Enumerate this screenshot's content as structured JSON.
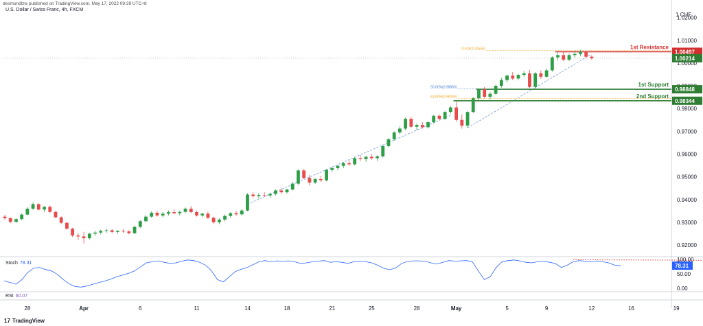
{
  "header": {
    "publisher_line": "desmondlzw published on TradingView.com, May 17, 2022 09:29 UTC+8",
    "symbol": "U.S. Dollar / Swiss Franc, 4h, FXCM"
  },
  "brand": {
    "logo": "17",
    "name": "TradingView"
  },
  "chart_data": {
    "type": "candlestick",
    "currency": "CHF",
    "y_ticks": [
      "1.02000",
      "1.01000",
      "1.00000",
      "0.99000",
      "0.98000",
      "0.97000",
      "0.96000",
      "0.95000",
      "0.94000",
      "0.93000",
      "0.92000"
    ],
    "ylim": [
      0.9155,
      1.0235
    ],
    "x_ticks": [
      {
        "label": "28",
        "bar": 4,
        "bold": false
      },
      {
        "label": "Apr",
        "bar": 14,
        "bold": true
      },
      {
        "label": "6",
        "bar": 24,
        "bold": false
      },
      {
        "label": "11",
        "bar": 34,
        "bold": false
      },
      {
        "label": "14",
        "bar": 43,
        "bold": false
      },
      {
        "label": "18",
        "bar": 50,
        "bold": false
      },
      {
        "label": "21",
        "bar": 58,
        "bold": false
      },
      {
        "label": "25",
        "bar": 65,
        "bold": false
      },
      {
        "label": "28",
        "bar": 73,
        "bold": false
      },
      {
        "label": "May",
        "bar": 80,
        "bold": true
      },
      {
        "label": "5",
        "bar": 89,
        "bold": false
      },
      {
        "label": "9",
        "bar": 96,
        "bold": false
      },
      {
        "label": "12",
        "bar": 104,
        "bold": false
      },
      {
        "label": "16",
        "bar": 111,
        "bold": false
      },
      {
        "label": "19",
        "bar": 119,
        "bold": false
      }
    ],
    "candles": [
      [
        0.9325,
        0.9333,
        0.9312,
        0.9318
      ],
      [
        0.9318,
        0.9322,
        0.9296,
        0.9302
      ],
      [
        0.9302,
        0.9318,
        0.9298,
        0.9314
      ],
      [
        0.9314,
        0.9339,
        0.931,
        0.9334
      ],
      [
        0.9334,
        0.9366,
        0.933,
        0.936
      ],
      [
        0.936,
        0.9388,
        0.9355,
        0.938
      ],
      [
        0.938,
        0.9384,
        0.9352,
        0.9356
      ],
      [
        0.9356,
        0.9372,
        0.9345,
        0.9368
      ],
      [
        0.9368,
        0.9374,
        0.934,
        0.9346
      ],
      [
        0.9346,
        0.935,
        0.9318,
        0.9322
      ],
      [
        0.9322,
        0.9326,
        0.9292,
        0.9298
      ],
      [
        0.9298,
        0.9302,
        0.9268,
        0.9272
      ],
      [
        0.9272,
        0.9276,
        0.9236,
        0.9242
      ],
      [
        0.9242,
        0.9252,
        0.9222,
        0.9238
      ],
      [
        0.9238,
        0.9258,
        0.9208,
        0.923
      ],
      [
        0.923,
        0.9254,
        0.9224,
        0.925
      ],
      [
        0.925,
        0.9262,
        0.924,
        0.9255
      ],
      [
        0.9255,
        0.9268,
        0.9247,
        0.9262
      ],
      [
        0.9262,
        0.9272,
        0.9253,
        0.9265
      ],
      [
        0.9265,
        0.927,
        0.9252,
        0.9258
      ],
      [
        0.9258,
        0.9266,
        0.925,
        0.9262
      ],
      [
        0.9262,
        0.927,
        0.9254,
        0.926
      ],
      [
        0.926,
        0.9265,
        0.9247,
        0.9252
      ],
      [
        0.9252,
        0.9285,
        0.9248,
        0.928
      ],
      [
        0.928,
        0.931,
        0.9275,
        0.9305
      ],
      [
        0.9305,
        0.9332,
        0.93,
        0.9325
      ],
      [
        0.9325,
        0.9348,
        0.932,
        0.9342
      ],
      [
        0.9342,
        0.935,
        0.9325,
        0.933
      ],
      [
        0.933,
        0.9345,
        0.9322,
        0.9338
      ],
      [
        0.9338,
        0.9352,
        0.933,
        0.9345
      ],
      [
        0.9345,
        0.9358,
        0.9335,
        0.934
      ],
      [
        0.934,
        0.935,
        0.933,
        0.9346
      ],
      [
        0.9346,
        0.9365,
        0.934,
        0.936
      ],
      [
        0.936,
        0.9372,
        0.934,
        0.9345
      ],
      [
        0.9345,
        0.9352,
        0.9325,
        0.933
      ],
      [
        0.933,
        0.9342,
        0.9322,
        0.9338
      ],
      [
        0.9338,
        0.9346,
        0.9315,
        0.932
      ],
      [
        0.932,
        0.9325,
        0.9292,
        0.93
      ],
      [
        0.93,
        0.9318,
        0.9292,
        0.9312
      ],
      [
        0.9312,
        0.9335,
        0.9305,
        0.9328
      ],
      [
        0.9328,
        0.9345,
        0.932,
        0.934
      ],
      [
        0.934,
        0.935,
        0.9328,
        0.9335
      ],
      [
        0.9335,
        0.9358,
        0.933,
        0.9352
      ],
      [
        0.9352,
        0.9428,
        0.9348,
        0.9422
      ],
      [
        0.9422,
        0.9432,
        0.9408,
        0.9415
      ],
      [
        0.9415,
        0.9428,
        0.9405,
        0.942
      ],
      [
        0.942,
        0.9432,
        0.9412,
        0.9418
      ],
      [
        0.9418,
        0.943,
        0.9408,
        0.9425
      ],
      [
        0.9425,
        0.9445,
        0.9418,
        0.944
      ],
      [
        0.944,
        0.945,
        0.9425,
        0.9432
      ],
      [
        0.9432,
        0.9448,
        0.9426,
        0.9444
      ],
      [
        0.9444,
        0.9478,
        0.944,
        0.947
      ],
      [
        0.947,
        0.9532,
        0.9465,
        0.9528
      ],
      [
        0.9528,
        0.9535,
        0.949,
        0.9495
      ],
      [
        0.9495,
        0.9508,
        0.9462,
        0.9475
      ],
      [
        0.9475,
        0.9495,
        0.9468,
        0.949
      ],
      [
        0.949,
        0.9505,
        0.9478,
        0.9485
      ],
      [
        0.9485,
        0.9535,
        0.948,
        0.953
      ],
      [
        0.953,
        0.9545,
        0.9522,
        0.9538
      ],
      [
        0.9538,
        0.9552,
        0.953,
        0.9548
      ],
      [
        0.9548,
        0.9565,
        0.9538,
        0.956
      ],
      [
        0.956,
        0.9572,
        0.9548,
        0.9555
      ],
      [
        0.9555,
        0.9588,
        0.955,
        0.9582
      ],
      [
        0.9582,
        0.9595,
        0.957,
        0.9578
      ],
      [
        0.9578,
        0.9592,
        0.9566,
        0.9588
      ],
      [
        0.9588,
        0.96,
        0.9575,
        0.9582
      ],
      [
        0.9582,
        0.9595,
        0.957,
        0.959
      ],
      [
        0.959,
        0.964,
        0.9585,
        0.9635
      ],
      [
        0.9635,
        0.967,
        0.963,
        0.9665
      ],
      [
        0.9665,
        0.97,
        0.9658,
        0.9695
      ],
      [
        0.9695,
        0.9722,
        0.9688,
        0.9712
      ],
      [
        0.9712,
        0.976,
        0.9705,
        0.9755
      ],
      [
        0.9755,
        0.9762,
        0.9715,
        0.972
      ],
      [
        0.972,
        0.9735,
        0.9705,
        0.9728
      ],
      [
        0.9728,
        0.974,
        0.9712,
        0.9718
      ],
      [
        0.9718,
        0.9745,
        0.9712,
        0.974
      ],
      [
        0.974,
        0.9772,
        0.9735,
        0.9768
      ],
      [
        0.9768,
        0.9775,
        0.9748,
        0.9755
      ],
      [
        0.9755,
        0.979,
        0.975,
        0.9785
      ],
      [
        0.9785,
        0.9812,
        0.9778,
        0.9805
      ],
      [
        0.9805,
        0.983,
        0.9742,
        0.975
      ],
      [
        0.975,
        0.9775,
        0.9712,
        0.9725
      ],
      [
        0.9725,
        0.979,
        0.9715,
        0.9785
      ],
      [
        0.9785,
        0.9852,
        0.978,
        0.9845
      ],
      [
        0.9845,
        0.989,
        0.9838,
        0.9885
      ],
      [
        0.9885,
        0.9895,
        0.9845,
        0.9852
      ],
      [
        0.9852,
        0.9872,
        0.984,
        0.9865
      ],
      [
        0.9865,
        0.9905,
        0.986,
        0.99
      ],
      [
        0.99,
        0.9935,
        0.9892,
        0.9925
      ],
      [
        0.9925,
        0.995,
        0.9915,
        0.9945
      ],
      [
        0.9945,
        0.996,
        0.9925,
        0.9932
      ],
      [
        0.9932,
        0.9952,
        0.9926,
        0.9948
      ],
      [
        0.9948,
        0.9965,
        0.994,
        0.9955
      ],
      [
        0.9955,
        0.997,
        0.989,
        0.9895
      ],
      [
        0.9895,
        0.996,
        0.9888,
        0.9955
      ],
      [
        0.9955,
        0.9968,
        0.993,
        0.994
      ],
      [
        0.994,
        0.9975,
        0.9935,
        0.9968
      ],
      [
        0.9968,
        1.003,
        0.9962,
        1.0025
      ],
      [
        1.0025,
        1.005,
        1.0012,
        1.0035
      ],
      [
        1.0035,
        1.0048,
        1.0008,
        1.0015
      ],
      [
        1.0015,
        1.0042,
        1.0008,
        1.0035
      ],
      [
        1.0035,
        1.0055,
        1.0025,
        1.004
      ],
      [
        1.004,
        1.0058,
        1.003,
        1.005
      ],
      [
        1.005,
        1.0055,
        1.002,
        1.0028
      ],
      [
        1.0028,
        1.0035,
        1.0015,
        1.0021
      ]
    ],
    "start_bar": 0,
    "levels": [
      {
        "name": "1st Resistance",
        "value": 1.00497,
        "label": "1.00497",
        "color": "#d32f2f",
        "from_bar": 98
      },
      {
        "name": "1st Support",
        "value": 0.98848,
        "label": "0.98848",
        "color": "#2e7d32",
        "from_bar": 84
      },
      {
        "name": "2nd Support",
        "value": 0.98344,
        "label": "0.98344",
        "color": "#2e7d32",
        "from_bar": 80
      }
    ],
    "current_price": {
      "value": 1.00214,
      "label": "1.00214",
      "color": "#2e7d32"
    },
    "fib_labels": [
      {
        "text": "0.618(1.00556)",
        "value": 1.00556,
        "color": "#f5a623",
        "from_bar": 89
      },
      {
        "text": "50.00%(0.98869)",
        "value": 0.98869,
        "color": "#4a7fd6",
        "from_bar": 84
      },
      {
        "text": "61.80%(0.98449)",
        "value": 0.98449,
        "color": "#f5a623",
        "from_bar": 84
      }
    ],
    "trendlines": [
      {
        "from": [
          43,
          0.938
        ],
        "to": [
          79,
          0.977
        ]
      },
      {
        "from": [
          82,
          0.9715
        ],
        "to": [
          104,
          1.004
        ]
      }
    ],
    "stoch": {
      "name": "Stoch",
      "value": "78.31",
      "y_ticks": [
        "100.00",
        "50.00",
        "0.00"
      ],
      "values": [
        26,
        20,
        14,
        30,
        55,
        70,
        72,
        65,
        60,
        48,
        30,
        15,
        6,
        4,
        8,
        14,
        20,
        25,
        32,
        40,
        46,
        52,
        60,
        74,
        88,
        92,
        95,
        90,
        86,
        88,
        94,
        98,
        96,
        90,
        80,
        60,
        30,
        22,
        40,
        58,
        66,
        72,
        82,
        92,
        96,
        92,
        95,
        94,
        95,
        92,
        86,
        88,
        92,
        94,
        96,
        90,
        92,
        90,
        86,
        92,
        94,
        92,
        88,
        80,
        70,
        64,
        70,
        85,
        93,
        95,
        95,
        94,
        88,
        84,
        90,
        96,
        94,
        95,
        96,
        92,
        60,
        30,
        40,
        72,
        92,
        96,
        98,
        95,
        90,
        88,
        92,
        94,
        90,
        86,
        72,
        80,
        92,
        96,
        94,
        92,
        95,
        92,
        88,
        80,
        78
      ],
      "dotted": {
        "from": [
          96,
          99
        ],
        "to": [
          130,
          96
        ]
      }
    },
    "rsi": {
      "name": "RSI",
      "value": "60.07"
    }
  }
}
